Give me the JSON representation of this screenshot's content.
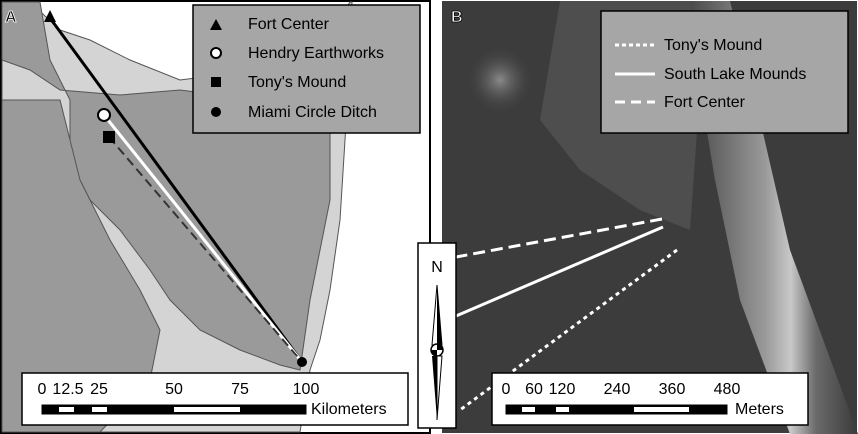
{
  "panel_a": {
    "label": "A",
    "legend": [
      "Fort Center",
      "Hendry Earthworks",
      "Tony's Mound",
      "Miami Circle Ditch"
    ],
    "scale": {
      "ticks": [
        "0",
        "12.5",
        "25",
        "50",
        "75",
        "100"
      ],
      "unit": "Kilometers"
    }
  },
  "panel_b": {
    "label": "B",
    "legend": [
      "Tony's Mound",
      "South Lake Mounds",
      "Fort Center"
    ],
    "scale": {
      "ticks": [
        "0",
        "60",
        "120",
        "240",
        "360",
        "480"
      ],
      "unit": "Meters"
    }
  },
  "north_arrow": {
    "label": "N"
  }
}
